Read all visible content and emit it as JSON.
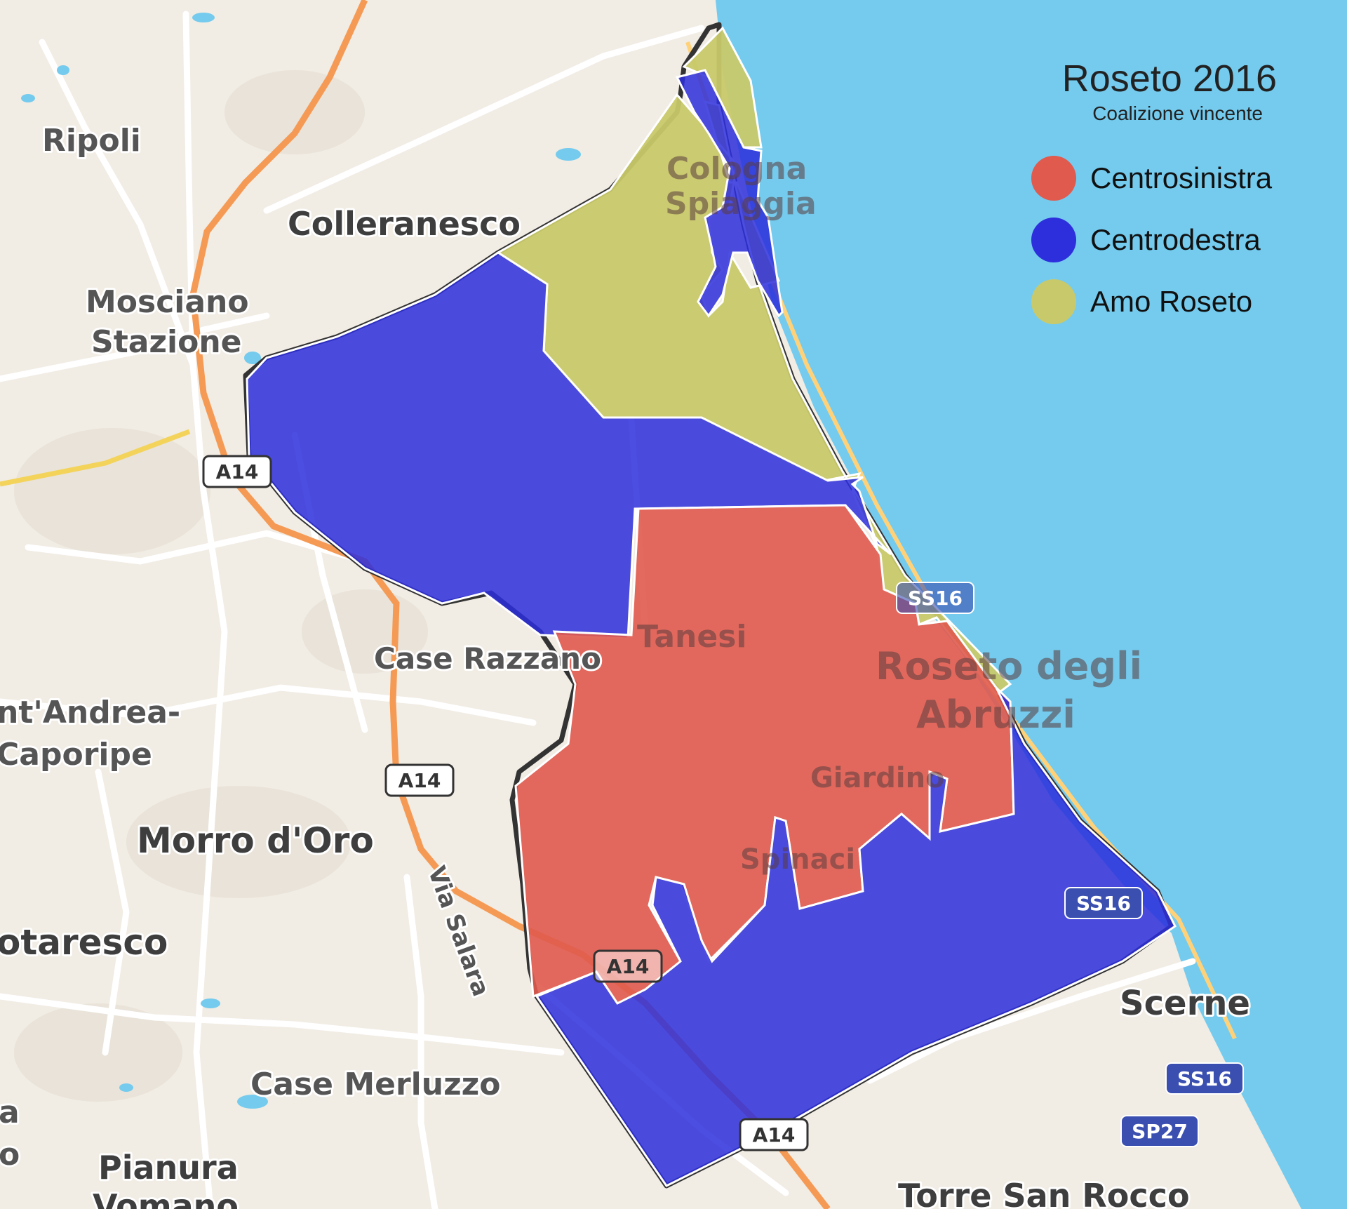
{
  "legend": {
    "title": "Roseto 2016",
    "subtitle": "Coalizione vincente",
    "items": [
      {
        "label": "Centrosinistra",
        "color": "#e05a4e"
      },
      {
        "label": "Centrodestra",
        "color": "#2d2edc"
      },
      {
        "label": "Amo Roseto",
        "color": "#c8c96a"
      }
    ]
  },
  "places": {
    "ripoli": "Ripoli",
    "colleranesco": "Colleranesco",
    "mosciano_1": "Mosciano",
    "mosciano_2": "Stazione",
    "cologna_1": "Cologna",
    "cologna_2": "Spiaggia",
    "case_razzano": "Case Razzano",
    "tanesi": "Tanesi",
    "roseto_1": "Roseto degli",
    "roseto_2": "Abruzzi",
    "santandrea_1": "nt'Andrea-",
    "santandrea_2": "Caporipe",
    "morro": "Morro d'Oro",
    "giardino": "Giardino",
    "spinaci": "Spinaci",
    "notaresco": "otaresco",
    "via_salara": "Via Salara",
    "scerne": "Scerne",
    "case_merluzzo": "Case Merluzzo",
    "pianura_1": "Pianura",
    "pianura_2": "Vomano",
    "torre": "Torre San Rocco",
    "edge_a": "a",
    "edge_o": "o"
  },
  "shields": {
    "a14": "A14",
    "ss16": "SS16",
    "sp27": "SP27"
  },
  "colors": {
    "sea": "#74cbee",
    "land": "#f1ece4",
    "highway": "#f59a55",
    "road": "#ffffff",
    "border": "#333333"
  }
}
